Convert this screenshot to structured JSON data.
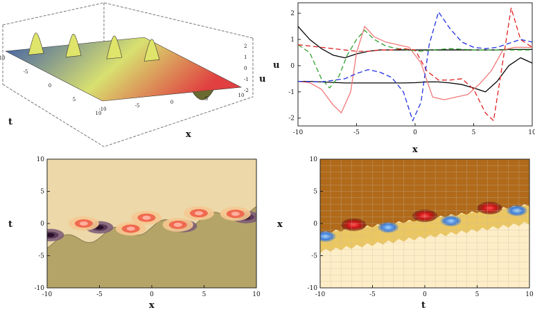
{
  "chart_data": [
    {
      "panel": "3d-surface",
      "type": "surface",
      "xlabel": "x",
      "ylabel": "t",
      "zlabel": "u",
      "x_ticks": [
        "-10",
        "-5",
        "0",
        "5",
        "10"
      ],
      "t_ticks": [
        "-10",
        "-5",
        "0",
        "5",
        "10"
      ],
      "u_ticks": [
        "-2",
        "-1",
        "0",
        "1",
        "2"
      ],
      "xlim": [
        -10,
        10
      ],
      "tlim": [
        -10,
        10
      ],
      "zlim": [
        -2,
        2.5
      ],
      "peaks_x": [
        -7,
        -3,
        1.5,
        5.5
      ],
      "peak_heights": [
        1.9,
        2.0,
        2.0,
        1.9
      ],
      "colors": {
        "low": "#3a5aa8",
        "mid": "#d8e070",
        "high": "#e04040"
      }
    },
    {
      "panel": "line-profiles",
      "type": "line",
      "xlabel": "x",
      "ylabel": "u",
      "xlim": [
        -10,
        10
      ],
      "ylim": [
        -2.3,
        2.4
      ],
      "x_ticks": [
        "-10",
        "-5",
        "0",
        "5",
        "10"
      ],
      "y_ticks": [
        "-2",
        "-1",
        "0",
        "1",
        "2"
      ],
      "series": [
        {
          "color": "#000000",
          "dash": "solid",
          "x": [
            -10,
            -9,
            -8,
            -7,
            -6,
            -5,
            -4,
            -3,
            -2,
            -1,
            0,
            1,
            2,
            3,
            4,
            5,
            6,
            7,
            8,
            9,
            10
          ],
          "y": [
            1.5,
            1.0,
            0.65,
            0.4,
            0.3,
            0.45,
            0.55,
            0.6,
            0.6,
            0.6,
            0.6,
            0.6,
            0.6,
            0.6,
            0.6,
            0.6,
            0.6,
            0.6,
            0.62,
            0.62,
            0.62
          ]
        },
        {
          "color": "#000000",
          "dash": "solid",
          "x": [
            -10,
            -9,
            -8,
            -7,
            -6,
            -5,
            -4,
            -3,
            -2,
            -1,
            0,
            1,
            2,
            3,
            4,
            5,
            6,
            7,
            8,
            9,
            10
          ],
          "y": [
            -0.6,
            -0.6,
            -0.62,
            -0.64,
            -0.66,
            -0.66,
            -0.66,
            -0.66,
            -0.66,
            -0.66,
            -0.65,
            -0.62,
            -0.62,
            -0.66,
            -0.72,
            -0.85,
            -1.0,
            -0.6,
            0.0,
            0.3,
            0.1
          ]
        },
        {
          "color": "#f07878",
          "dash": "solid",
          "x": [
            -10,
            -9,
            -8,
            -7,
            -6.3,
            -5.5,
            -5,
            -4.3,
            -3.5,
            -2.5,
            -1.5,
            -0.5,
            0.5,
            1.5,
            2.5,
            3.5,
            4.5,
            5.5,
            6.5,
            7.5,
            8.5,
            9.5,
            10
          ],
          "y": [
            -0.6,
            -0.65,
            -0.9,
            -1.5,
            -1.8,
            -1.0,
            0.5,
            1.5,
            1.1,
            0.9,
            0.8,
            0.7,
            0.1,
            -1.2,
            -1.3,
            -1.2,
            -1.1,
            -0.7,
            -0.2,
            0.6,
            0.7,
            0.7,
            0.7
          ]
        },
        {
          "color": "#2ea02e",
          "dash": "dashed",
          "x": [
            -10,
            -9,
            -8,
            -7.3,
            -6.5,
            -5.8,
            -5,
            -4.3,
            -3.5,
            -2.5,
            -1.5,
            -0.5,
            0.5,
            1.5,
            3,
            5,
            7,
            9,
            10
          ],
          "y": [
            0.8,
            0.5,
            -0.5,
            -0.85,
            -0.4,
            0.4,
            1.0,
            1.35,
            1.0,
            0.75,
            0.65,
            0.6,
            0.55,
            0.6,
            0.65,
            0.6,
            0.6,
            0.6,
            0.6
          ]
        },
        {
          "color": "#e02020",
          "dash": "dashed",
          "x": [
            -10,
            -8,
            -6,
            -5,
            -4,
            -3,
            -2,
            -1,
            0,
            1,
            2,
            3,
            4,
            5,
            6,
            6.7,
            7.5,
            8.2,
            9,
            10
          ],
          "y": [
            0.8,
            0.7,
            0.6,
            0.55,
            0.55,
            0.6,
            0.6,
            0.65,
            0.6,
            -0.2,
            -0.55,
            -0.55,
            -0.5,
            -0.9,
            -1.8,
            -2.1,
            0.2,
            2.2,
            1.0,
            0.7
          ]
        },
        {
          "color": "#2030e0",
          "dash": "dashed",
          "x": [
            -10,
            -8,
            -6,
            -5,
            -4,
            -3,
            -2,
            -1,
            -0.2,
            0.5,
            1.2,
            2,
            3,
            4,
            5,
            6,
            7,
            8,
            9,
            10
          ],
          "y": [
            -0.6,
            -0.62,
            -0.5,
            -0.3,
            -0.15,
            -0.25,
            -0.45,
            -1.0,
            -2.1,
            -1.4,
            0.8,
            2.05,
            1.4,
            0.9,
            0.7,
            0.65,
            0.7,
            0.85,
            1.0,
            0.9
          ]
        }
      ]
    },
    {
      "panel": "density-contour",
      "type": "heatmap",
      "xlabel": "x",
      "ylabel": "t",
      "xlim": [
        -10,
        10
      ],
      "ylim": [
        -10,
        10
      ],
      "x_ticks": [
        "-10",
        "-5",
        "0",
        "5",
        "10"
      ],
      "y_ticks": [
        "-10",
        "-5",
        "0",
        "5",
        "10"
      ],
      "peaks": [
        {
          "x": -6.5,
          "t": 0.0
        },
        {
          "x": -2.0,
          "t": -0.8
        },
        {
          "x": -0.5,
          "t": 0.9
        },
        {
          "x": 2.5,
          "t": -0.2
        },
        {
          "x": 4.5,
          "t": 1.6
        },
        {
          "x": 8.0,
          "t": 1.5
        }
      ],
      "troughs": [
        {
          "x": -9.7,
          "t": -1.8
        },
        {
          "x": -5.0,
          "t": -0.6
        },
        {
          "x": 3.0,
          "t": -0.4
        },
        {
          "x": 9.0,
          "t": 1.0
        }
      ],
      "colors": {
        "top": "#ecd8a8",
        "bottom": "#b4a468",
        "peak": "#f06a50",
        "trough": "#5a3a58"
      }
    },
    {
      "panel": "density-grid",
      "type": "heatmap",
      "xlabel": "t",
      "ylabel": "x",
      "xlim": [
        -10,
        10
      ],
      "ylim": [
        -10,
        10
      ],
      "x_ticks": [
        "-10",
        "-5",
        "0",
        "5",
        "10"
      ],
      "y_ticks": [
        "-10",
        "-5",
        "0",
        "5",
        "10"
      ],
      "red_blobs": [
        {
          "x": -6.8,
          "y": -0.2
        },
        {
          "x": 0.0,
          "y": 1.2
        },
        {
          "x": 6.2,
          "y": 2.4
        }
      ],
      "blue_blobs": [
        {
          "x": -9.5,
          "y": -2.0
        },
        {
          "x": -3.5,
          "y": -0.6
        },
        {
          "x": 2.5,
          "y": 0.4
        },
        {
          "x": 8.8,
          "y": 2.0
        }
      ],
      "colors": {
        "top": "#b06a1a",
        "bottom": "#fdeec8",
        "band": "#e8c050",
        "red": "#c81414",
        "blue": "#3a7ad8"
      }
    }
  ]
}
